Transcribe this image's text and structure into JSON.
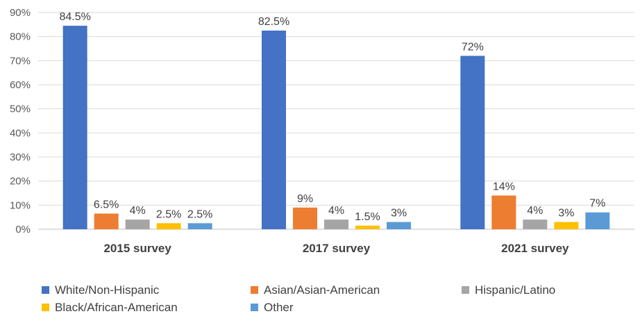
{
  "chart_data": {
    "type": "bar",
    "title": "",
    "xlabel": "",
    "ylabel": "",
    "categories": [
      "2015 survey",
      "2017 survey",
      "2021 survey"
    ],
    "ylim": [
      0,
      90
    ],
    "yticks": [
      0,
      10,
      20,
      30,
      40,
      50,
      60,
      70,
      80,
      90
    ],
    "ytick_labels": [
      "0%",
      "10%",
      "20%",
      "30%",
      "40%",
      "50%",
      "60%",
      "70%",
      "80%",
      "90%"
    ],
    "grid": true,
    "legend_position": "bottom",
    "series": [
      {
        "name": "White/Non-Hispanic",
        "color": "#4472C4",
        "values": [
          84.5,
          82.5,
          72
        ],
        "labels": [
          "84.5%",
          "82.5%",
          "72%"
        ]
      },
      {
        "name": "Asian/Asian-American",
        "color": "#ED7D31",
        "values": [
          6.5,
          9,
          14
        ],
        "labels": [
          "6.5%",
          "9%",
          "14%"
        ]
      },
      {
        "name": "Hispanic/Latino",
        "color": "#A5A5A5",
        "values": [
          4,
          4,
          4
        ],
        "labels": [
          "4%",
          "4%",
          "4%"
        ]
      },
      {
        "name": "Black/African-American",
        "color": "#FFC000",
        "values": [
          2.5,
          1.5,
          3
        ],
        "labels": [
          "2.5%",
          "1.5%",
          "3%"
        ]
      },
      {
        "name": "Other",
        "color": "#5B9BD5",
        "values": [
          2.5,
          3,
          7
        ],
        "labels": [
          "2.5%",
          "3%",
          "7%"
        ]
      }
    ]
  }
}
